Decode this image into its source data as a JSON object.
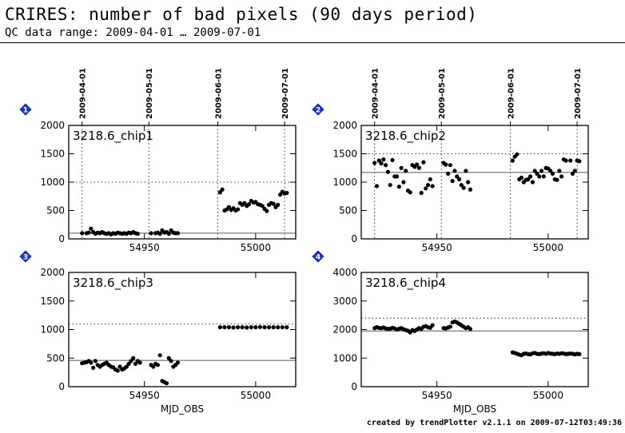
{
  "title": "CRIRES: number of bad pixels (90 days period)",
  "subtitle": "QC data range: 2009-04-01 … 2009-07-01",
  "footer": "created by trendPlotter v2.1.1 on 2009-07-12T03:49:36",
  "chart_data": [
    {
      "type": "scatter",
      "index": "1",
      "label": "3218.6_chip1",
      "xlabel": "",
      "ylabel": "",
      "xlim": [
        54916,
        55018
      ],
      "ylim": [
        0,
        2000
      ],
      "yticks": [
        0,
        500,
        1000,
        1500,
        2000
      ],
      "xticks": [
        54950,
        55000
      ],
      "date_ticks": [
        {
          "mjd": 54922,
          "label": "2009-04-01"
        },
        {
          "mjd": 54952,
          "label": "2009-05-01"
        },
        {
          "mjd": 54983,
          "label": "2009-06-01"
        },
        {
          "mjd": 55013,
          "label": "2009-07-01"
        }
      ],
      "ref_line": 100,
      "dotted_line": 1000,
      "x": [
        54922,
        54924,
        54925,
        54926,
        54927,
        54928,
        54929,
        54930,
        54931,
        54932,
        54933,
        54934,
        54935,
        54936,
        54937,
        54938,
        54939,
        54940,
        54941,
        54942,
        54943,
        54944,
        54945,
        54946,
        54947,
        54953,
        54955,
        54956,
        54957,
        54958,
        54959,
        54960,
        54961,
        54962,
        54963,
        54964,
        54965,
        54984,
        54985,
        54986,
        54987,
        54988,
        54989,
        54990,
        54991,
        54992,
        54993,
        54994,
        54995,
        54996,
        54997,
        54998,
        54999,
        55000,
        55001,
        55002,
        55003,
        55004,
        55005,
        55006,
        55007,
        55008,
        55009,
        55010,
        55011,
        55012,
        55013,
        55014
      ],
      "y": [
        100,
        100,
        110,
        180,
        120,
        90,
        110,
        100,
        120,
        100,
        90,
        100,
        80,
        100,
        90,
        110,
        100,
        90,
        100,
        90,
        110,
        100,
        120,
        100,
        90,
        100,
        100,
        110,
        90,
        150,
        110,
        120,
        90,
        150,
        110,
        100,
        100,
        820,
        870,
        500,
        520,
        560,
        510,
        540,
        500,
        520,
        630,
        600,
        630,
        580,
        610,
        670,
        640,
        650,
        610,
        600,
        580,
        530,
        490,
        600,
        630,
        620,
        560,
        600,
        780,
        830,
        800,
        810
      ]
    },
    {
      "type": "scatter",
      "index": "2",
      "label": "3218.6_chip2",
      "xlabel": "",
      "ylabel": "",
      "xlim": [
        54916,
        55018
      ],
      "ylim": [
        0,
        2000
      ],
      "yticks": [
        0,
        500,
        1000,
        1500,
        2000
      ],
      "xticks": [
        54950,
        55000
      ],
      "date_ticks": [
        {
          "mjd": 54922,
          "label": "2009-04-01"
        },
        {
          "mjd": 54952,
          "label": "2009-05-01"
        },
        {
          "mjd": 54983,
          "label": "2009-06-01"
        },
        {
          "mjd": 55013,
          "label": "2009-07-01"
        }
      ],
      "ref_line": 1170,
      "dotted_line": 1500,
      "x": [
        54922,
        54923,
        54924,
        54925,
        54926,
        54927,
        54928,
        54929,
        54930,
        54931,
        54932,
        54933,
        54934,
        54935,
        54936,
        54937,
        54938,
        54939,
        54940,
        54941,
        54942,
        54943,
        54944,
        54945,
        54946,
        54947,
        54948,
        54953,
        54954,
        54955,
        54956,
        54957,
        54958,
        54959,
        54960,
        54961,
        54962,
        54963,
        54964,
        54965,
        54984,
        54985,
        54986,
        54987,
        54988,
        54989,
        54990,
        54991,
        54992,
        54993,
        54994,
        54995,
        54996,
        54997,
        54998,
        54999,
        55000,
        55001,
        55002,
        55003,
        55004,
        55005,
        55006,
        55007,
        55008,
        55010,
        55011,
        55012,
        55013,
        55014
      ],
      "y": [
        1340,
        930,
        1380,
        1330,
        1400,
        1300,
        1180,
        950,
        1390,
        1100,
        1100,
        920,
        1250,
        1000,
        1200,
        850,
        820,
        1300,
        1270,
        1310,
        1250,
        810,
        1350,
        890,
        950,
        1050,
        930,
        1340,
        1310,
        1150,
        1300,
        1020,
        1200,
        1100,
        1050,
        950,
        900,
        1200,
        1000,
        870,
        1380,
        1450,
        1490,
        1050,
        1080,
        1000,
        1040,
        1050,
        1100,
        1000,
        1200,
        1150,
        1100,
        1200,
        1100,
        1250,
        1240,
        1200,
        1150,
        1050,
        1040,
        1200,
        1100,
        1400,
        1380,
        1380,
        1150,
        1200,
        1380,
        1370
      ]
    },
    {
      "type": "scatter",
      "index": "3",
      "label": "3218.6_chip3",
      "xlabel": "MJD_OBS",
      "ylabel": "",
      "xlim": [
        54916,
        55018
      ],
      "ylim": [
        0,
        2000
      ],
      "yticks": [
        0,
        500,
        1000,
        1500,
        2000
      ],
      "xticks": [
        54950,
        55000
      ],
      "date_ticks": [],
      "ref_line": 460,
      "dotted_line": 1100,
      "x": [
        54922,
        54923,
        54924,
        54925,
        54926,
        54927,
        54928,
        54929,
        54930,
        54931,
        54932,
        54933,
        54934,
        54935,
        54936,
        54937,
        54938,
        54939,
        54940,
        54941,
        54942,
        54943,
        54944,
        54945,
        54946,
        54947,
        54948,
        54953,
        54954,
        54955,
        54956,
        54957,
        54958,
        54959,
        54960,
        54961,
        54962,
        54963,
        54964,
        54965,
        54984,
        54986,
        54988,
        54990,
        54992,
        54994,
        54996,
        54998,
        55000,
        55002,
        55004,
        55006,
        55008,
        55010,
        55012,
        55014
      ],
      "y": [
        410,
        420,
        430,
        450,
        420,
        330,
        450,
        380,
        350,
        380,
        400,
        420,
        380,
        350,
        340,
        300,
        280,
        350,
        300,
        320,
        350,
        400,
        450,
        500,
        400,
        450,
        420,
        380,
        350,
        400,
        380,
        550,
        100,
        80,
        60,
        500,
        450,
        350,
        380,
        420,
        1040,
        1040,
        1040,
        1035,
        1040,
        1040,
        1035,
        1040,
        1040,
        1045,
        1040,
        1040,
        1040,
        1040,
        1040,
        1040
      ]
    },
    {
      "type": "scatter",
      "index": "4",
      "label": "3218.6_chip4",
      "xlabel": "MJD_OBS",
      "ylabel": "",
      "xlim": [
        54916,
        55018
      ],
      "ylim": [
        0,
        4000
      ],
      "yticks": [
        0,
        1000,
        2000,
        3000,
        4000
      ],
      "xticks": [
        54950,
        55000
      ],
      "date_ticks": [],
      "ref_line": 1950,
      "dotted_line": 2400,
      "x": [
        54922,
        54923,
        54924,
        54925,
        54926,
        54927,
        54928,
        54929,
        54930,
        54931,
        54932,
        54933,
        54934,
        54935,
        54936,
        54937,
        54938,
        54939,
        54940,
        54941,
        54942,
        54943,
        54944,
        54945,
        54946,
        54947,
        54948,
        54953,
        54954,
        54955,
        54956,
        54957,
        54958,
        54959,
        54960,
        54961,
        54962,
        54963,
        54964,
        54965,
        54984,
        54985,
        54986,
        54987,
        54988,
        54989,
        54990,
        54991,
        54992,
        54993,
        54994,
        54995,
        54996,
        54997,
        54998,
        54999,
        55000,
        55001,
        55002,
        55003,
        55004,
        55005,
        55006,
        55007,
        55008,
        55009,
        55010,
        55011,
        55012,
        55013,
        55014
      ],
      "y": [
        2050,
        2080,
        2060,
        2050,
        2070,
        2040,
        2020,
        2030,
        2060,
        2040,
        2000,
        2030,
        2050,
        2010,
        1980,
        1960,
        1900,
        1980,
        1950,
        2000,
        2050,
        2020,
        2100,
        2120,
        2080,
        2060,
        2150,
        2050,
        2040,
        2070,
        2100,
        2250,
        2280,
        2250,
        2200,
        2150,
        2100,
        2050,
        2080,
        2020,
        1200,
        1180,
        1150,
        1120,
        1100,
        1150,
        1160,
        1140,
        1130,
        1170,
        1180,
        1150,
        1140,
        1160,
        1170,
        1150,
        1180,
        1160,
        1150,
        1140,
        1160,
        1150,
        1170,
        1160,
        1140,
        1150,
        1160,
        1150,
        1130,
        1150,
        1140
      ]
    }
  ]
}
